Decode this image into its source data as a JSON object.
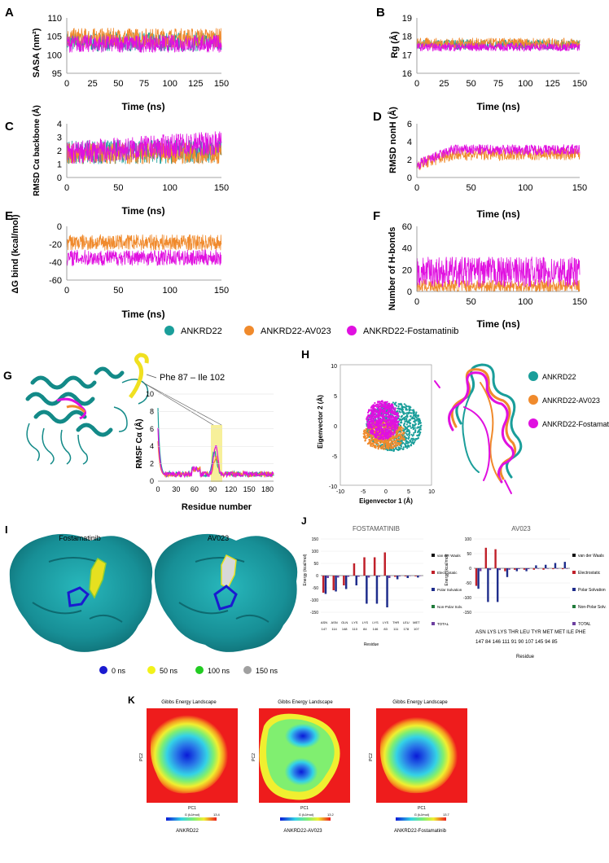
{
  "colors": {
    "ankrd22": "#1a9e9a",
    "av023": "#f08a2c",
    "fosta": "#e010e0",
    "surface": "#179aa0",
    "heatmap_high": "#ee1c1c",
    "elec": "#c0202a",
    "polar": "#1f2d8c",
    "vdw": "#111111",
    "nonpolar": "#1f7a3a",
    "total": "#6d3fa0",
    "highlight": "#f7f09a"
  },
  "legend": {
    "items": [
      "ANKRD22",
      "ANKRD22-AV023",
      "ANKRD22-Fostamatinib"
    ]
  },
  "panels": {
    "A": {
      "letter": "A",
      "ylabel": "SASA (nm²)",
      "xlabel": "Time (ns)",
      "yticks": [
        "110",
        "105",
        "100",
        "95"
      ],
      "xticks": [
        "0",
        "25",
        "50",
        "75",
        "100",
        "125",
        "150"
      ]
    },
    "B": {
      "letter": "B",
      "ylabel": "Rg (Å)",
      "xlabel": "Time (ns)",
      "yticks": [
        "19",
        "18",
        "17",
        "16"
      ],
      "xticks": [
        "0",
        "25",
        "50",
        "75",
        "100",
        "125",
        "150"
      ]
    },
    "C": {
      "letter": "C",
      "ylabel": "RMSD Cα backbone (Å)",
      "xlabel": "Time (ns)",
      "yticks": [
        "4",
        "3",
        "2",
        "1",
        "0"
      ],
      "xticks": [
        "0",
        "50",
        "100",
        "150"
      ]
    },
    "D": {
      "letter": "D",
      "ylabel": "RMSD nonH (Å)",
      "xlabel": "Time (ns)",
      "yticks": [
        "6",
        "4",
        "2",
        "0"
      ],
      "xticks": [
        "0",
        "50",
        "100",
        "150"
      ]
    },
    "E": {
      "letter": "E",
      "ylabel": "ΔG bind (kcal/mol)",
      "xlabel": "Time (ns)",
      "yticks": [
        "0",
        "-20",
        "-40",
        "-60"
      ],
      "xticks": [
        "0",
        "50",
        "100",
        "150"
      ]
    },
    "F": {
      "letter": "F",
      "ylabel": "Number of H-bonds",
      "xlabel": "Time (ns)",
      "yticks": [
        "60",
        "40",
        "20",
        "0"
      ],
      "xticks": [
        "0",
        "50",
        "100",
        "150"
      ]
    },
    "G": {
      "letter": "G",
      "annotation": "Phe 87 – Ile 102",
      "ylabel": "RMSF Cα (Å)",
      "xlabel": "Residue number",
      "yticks": [
        "10",
        "8",
        "6",
        "4",
        "2",
        "0"
      ],
      "xticks": [
        "0",
        "30",
        "60",
        "90",
        "120",
        "150",
        "180"
      ]
    },
    "H": {
      "letter": "H",
      "ylabel": "Eigenvector 2 (Å)",
      "xlabel": "Eigenvector 1 (Å)",
      "yticks": [
        "10",
        "5",
        "0",
        "-5",
        "-10"
      ],
      "xticks": [
        "-10",
        "-5",
        "0",
        "5",
        "10"
      ],
      "legend": [
        "ANKRD22",
        "ANKRD22-AV023",
        "ANKRD22-Fostamatinib"
      ]
    },
    "I": {
      "letter": "I",
      "labels": [
        "Fostamatinib",
        "AV023"
      ],
      "time_legend": [
        {
          "label": "0 ns",
          "color": "#1a1ad0"
        },
        {
          "label": "50 ns",
          "color": "#f2f21a"
        },
        {
          "label": "100 ns",
          "color": "#22cc22"
        },
        {
          "label": "150 ns",
          "color": "#a0a0a0"
        }
      ]
    },
    "J": {
      "letter": "J",
      "title_left": "FOSTAMATINIB",
      "title_right": "AV023",
      "ylabel": "Energy (kcal/mol)",
      "xlabel": "Residue",
      "energy_legend": [
        "van der Waals",
        "Electrostatic",
        "Polar Solvation",
        "Non-Polar Solv.",
        "TOTAL"
      ],
      "left_yticks": [
        "150",
        "100",
        "50",
        "0",
        "-50",
        "-100",
        "-150"
      ],
      "right_yticks": [
        "100",
        "50",
        "0",
        "-50",
        "-100",
        "-150"
      ],
      "left_res_names": [
        "ASN",
        "ASN",
        "GLN",
        "LYS",
        "LYS",
        "LYS",
        "LYS",
        "THR",
        "LEU",
        "MET"
      ],
      "left_res_nums": [
        "147",
        "114",
        "148",
        "110",
        "84",
        "146",
        "83",
        "111",
        "178",
        "107"
      ],
      "right_res_names": "ASN LYS LYS THR LEU TYR MET MET ILE PHE",
      "right_res_nums": "147 84 146 111 91 90 107 145 94 85"
    },
    "K": {
      "letter": "K",
      "title": "Gibbs Energy Landscape",
      "xlabel": "PC1",
      "ylabel": "PC2",
      "cbar_label": "G (kJ/mol)",
      "maps": [
        {
          "name": "ANKRD22",
          "max": "13.4"
        },
        {
          "name": "ANKRD22-AV023",
          "max": "13.2"
        },
        {
          "name": "ANKRD22-Fostamatinib",
          "max": "13.7"
        }
      ]
    }
  },
  "chart_data": [
    {
      "type": "line",
      "panel": "A",
      "ylabel": "SASA (nm²)",
      "xlabel": "Time (ns)",
      "xlim": [
        0,
        150
      ],
      "ylim": [
        95,
        110
      ],
      "series": [
        {
          "name": "ANKRD22",
          "mean": 103.5,
          "range": [
            100,
            108
          ]
        },
        {
          "name": "ANKRD22-AV023",
          "mean": 104.5,
          "range": [
            100,
            108
          ]
        },
        {
          "name": "ANKRD22-Fostamatinib",
          "mean": 103,
          "range": [
            100,
            107
          ]
        }
      ]
    },
    {
      "type": "line",
      "panel": "B",
      "ylabel": "Rg (Å)",
      "xlabel": "Time (ns)",
      "xlim": [
        0,
        150
      ],
      "ylim": [
        16,
        19
      ],
      "series": [
        {
          "name": "ANKRD22",
          "mean": 17.5
        },
        {
          "name": "ANKRD22-AV023",
          "mean": 17.6
        },
        {
          "name": "ANKRD22-Fostamatinib",
          "mean": 17.4
        }
      ]
    },
    {
      "type": "line",
      "panel": "C",
      "ylabel": "RMSD Cα backbone (Å)",
      "xlabel": "Time (ns)",
      "xlim": [
        0,
        150
      ],
      "ylim": [
        0,
        4
      ],
      "series": [
        {
          "name": "ANKRD22",
          "mean": 1.9
        },
        {
          "name": "ANKRD22-AV023",
          "mean": 1.8
        },
        {
          "name": "ANKRD22-Fostamatinib",
          "mean": 2.2
        }
      ]
    },
    {
      "type": "line",
      "panel": "D",
      "ylabel": "RMSD nonH (Å)",
      "xlabel": "Time (ns)",
      "xlim": [
        0,
        150
      ],
      "ylim": [
        0,
        6
      ],
      "series": [
        {
          "name": "ANKRD22-AV023",
          "mean": 2.6
        },
        {
          "name": "ANKRD22-Fostamatinib",
          "mean": 3.0
        }
      ]
    },
    {
      "type": "line",
      "panel": "E",
      "ylabel": "ΔG bind (kcal/mol)",
      "xlabel": "Time (ns)",
      "xlim": [
        0,
        150
      ],
      "ylim": [
        -60,
        0
      ],
      "series": [
        {
          "name": "ANKRD22-AV023",
          "mean": -18
        },
        {
          "name": "ANKRD22-Fostamatinib",
          "mean": -36
        }
      ]
    },
    {
      "type": "line",
      "panel": "F",
      "ylabel": "Number of H-bonds",
      "xlabel": "Time (ns)",
      "xlim": [
        0,
        150
      ],
      "ylim": [
        0,
        60
      ],
      "series": [
        {
          "name": "ANKRD22-AV023",
          "mean": 5
        },
        {
          "name": "ANKRD22-Fostamatinib",
          "mean": 18
        }
      ]
    },
    {
      "type": "line",
      "panel": "G",
      "ylabel": "RMSF Cα (Å)",
      "xlabel": "Residue number",
      "xlim": [
        0,
        190
      ],
      "ylim": [
        0,
        10
      ],
      "series": [
        {
          "name": "ANKRD22",
          "peak_at": 93,
          "peak": 2.5
        },
        {
          "name": "ANKRD22-AV023",
          "peak_at": 95,
          "peak": 2.0
        },
        {
          "name": "ANKRD22-Fostamatinib",
          "peak_at": 95,
          "peak": 3.2
        }
      ]
    },
    {
      "type": "scatter",
      "panel": "H",
      "xlabel": "Eigenvector 1 (Å)",
      "ylabel": "Eigenvector 2 (Å)",
      "xlim": [
        -10,
        10
      ],
      "ylim": [
        -10,
        10
      ]
    },
    {
      "type": "bar",
      "panel": "J-left",
      "title": "FOSTAMATINIB",
      "ylabel": "Energy (kcal/mol)",
      "xlabel": "Residue",
      "categories": [
        "ASN 147",
        "ASN 114",
        "GLN 148",
        "LYS 110",
        "LYS 84",
        "LYS 146",
        "LYS 83",
        "THR 111",
        "LEU 178",
        "MET 107"
      ],
      "series": [
        {
          "name": "Electrostatic",
          "values": [
            -70,
            -60,
            -40,
            50,
            75,
            75,
            95,
            -5,
            -3,
            -3
          ]
        },
        {
          "name": "Polar Solvation",
          "values": [
            -75,
            -65,
            -55,
            -40,
            -115,
            -115,
            -130,
            -15,
            -10,
            -8
          ]
        },
        {
          "name": "TOTAL",
          "values": [
            -10,
            -8,
            -5,
            -5,
            -8,
            -5,
            -10,
            -3,
            -2,
            -2
          ]
        }
      ]
    },
    {
      "type": "bar",
      "panel": "J-right",
      "title": "AV023",
      "ylabel": "Energy (kcal/mol)",
      "xlabel": "Residue",
      "categories": [
        "ASN 147",
        "LYS 84",
        "LYS 146",
        "THR 111",
        "LEU 91",
        "TYR 90",
        "MET 107",
        "MET 145",
        "ILE 94",
        "PHE 85"
      ],
      "series": [
        {
          "name": "Electrostatic",
          "values": [
            -60,
            70,
            65,
            -10,
            -5,
            -5,
            -5,
            -5,
            -3,
            -3
          ]
        },
        {
          "name": "Polar Solvation",
          "values": [
            -70,
            -115,
            -115,
            -30,
            -10,
            -10,
            10,
            12,
            18,
            22
          ]
        },
        {
          "name": "TOTAL",
          "values": [
            -10,
            -6,
            -6,
            -5,
            -3,
            -3,
            -2,
            -2,
            -2,
            -2
          ]
        }
      ]
    },
    {
      "type": "heatmap",
      "panel": "K",
      "title": "Gibbs Energy Landscape",
      "xlabel": "PC1",
      "ylabel": "PC2"
    }
  ]
}
